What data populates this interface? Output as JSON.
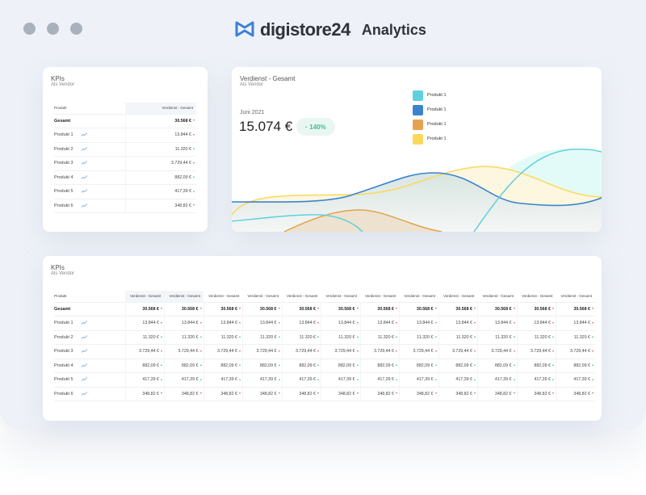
{
  "window": {
    "dots": 3
  },
  "brand": {
    "name": "digistore24",
    "product": "Analytics",
    "logo_color": "#3d7fd6"
  },
  "kpi_small": {
    "title": "KPIs",
    "subtitle": "Als Vendor",
    "col_product": "Produkt",
    "col_value": "Verdienst - Gesamt",
    "rows": [
      {
        "label": "Gesamt",
        "value": "30.568 €",
        "trend": "down",
        "total": true
      },
      {
        "label": "Produkt 1",
        "value": "13.844 €",
        "trend": "down"
      },
      {
        "label": "Produkt 2",
        "value": "11.320 €",
        "trend": "up"
      },
      {
        "label": "Produkt 3",
        "value": "3.729,44 €",
        "trend": "down"
      },
      {
        "label": "Produkt 4",
        "value": "882,09 €",
        "trend": "up"
      },
      {
        "label": "Produkt 5",
        "value": "417,39 €",
        "trend": "up"
      },
      {
        "label": "Produkt 6",
        "value": "348,82 €",
        "trend": "down"
      }
    ]
  },
  "chart_card": {
    "title": "Verdienst - Gesamt",
    "subtitle": "Als Vendor",
    "period": "Juni 2021",
    "value": "15.074 €",
    "change": "140%",
    "change_direction": "up",
    "change_color": "#3bbf95",
    "legend": [
      {
        "label": "Produkt 1",
        "color": "#5fd0df"
      },
      {
        "label": "Produkt 1",
        "color": "#3a83cf"
      },
      {
        "label": "Produkt 1",
        "color": "#e3a24f"
      },
      {
        "label": "Produkt 1",
        "color": "#fbd85c"
      }
    ]
  },
  "kpi_large": {
    "title": "KPIs",
    "subtitle": "Als Vendor",
    "col_product": "Produkt",
    "columns": [
      "Verdienst - Gesamt",
      "Verdienst - Gesamt",
      "Verdienst - Gesamt",
      "Verdienst - Gesamt",
      "Verdienst - Gesamt",
      "Verdienst - Gesamt",
      "Verdienst - Gesamt",
      "Verdienst - Gesamt",
      "Verdienst - Gesamt",
      "Verdienst - Gesamt",
      "Verdienst - Gesamt",
      "Verdienst - Gesamt"
    ],
    "rows": [
      {
        "label": "Gesamt",
        "total": true,
        "trend": "down",
        "cells": [
          "30.568 €",
          "30.568 €",
          "30.568 €",
          "30.568 €",
          "30.568 €",
          "30.568 €",
          "30.568 €",
          "30.568 €",
          "30.568 €",
          "30.568 €",
          "30.568 €",
          "30.568 €"
        ]
      },
      {
        "label": "Produkt 1",
        "trend": "down",
        "cells": [
          "13.844 €",
          "13.844 €",
          "13.844 €",
          "13.844 €",
          "13.844 €",
          "13.844 €",
          "13.844 €",
          "13.844 €",
          "13.844 €",
          "13.844 €",
          "13.844 €",
          "13.844 €"
        ]
      },
      {
        "label": "Produkt 2",
        "trend": "up",
        "cells": [
          "11.320 €",
          "11.320 €",
          "11.320 €",
          "11.320 €",
          "11.320 €",
          "11.320 €",
          "11.320 €",
          "11.320 €",
          "11.320 €",
          "11.320 €",
          "11.320 €",
          "11.320 €"
        ]
      },
      {
        "label": "Produkt 3",
        "trend": "down",
        "cells": [
          "3.729,44 €",
          "3.729,44 €",
          "3.729,44 €",
          "3.729,44 €",
          "3.729,44 €",
          "3.729,44 €",
          "3.729,44 €",
          "3.729,44 €",
          "3.729,44 €",
          "3.729,44 €",
          "3.729,44 €",
          "3.729,44 €"
        ]
      },
      {
        "label": "Produkt 4",
        "trend": "up",
        "cells": [
          "882,09 €",
          "882,09 €",
          "882,09 €",
          "882,09 €",
          "882,09 €",
          "882,09 €",
          "882,09 €",
          "882,09 €",
          "882,09 €",
          "882,09 €",
          "882,09 €",
          "882,09 €"
        ]
      },
      {
        "label": "Produkt 5",
        "trend": "up",
        "cells": [
          "417,39 €",
          "417,39 €",
          "417,39 €",
          "417,39 €",
          "417,39 €",
          "417,39 €",
          "417,39 €",
          "417,39 €",
          "417,39 €",
          "417,39 €",
          "417,39 €",
          "417,39 €"
        ]
      },
      {
        "label": "Produkt 6",
        "trend": "down",
        "cells": [
          "348,82 €",
          "348,82 €",
          "348,82 €",
          "348,82 €",
          "348,82 €",
          "348,82 €",
          "348,82 €",
          "348,82 €",
          "348,82 €",
          "348,82 €",
          "348,82 €",
          "348,82 €"
        ]
      }
    ]
  }
}
